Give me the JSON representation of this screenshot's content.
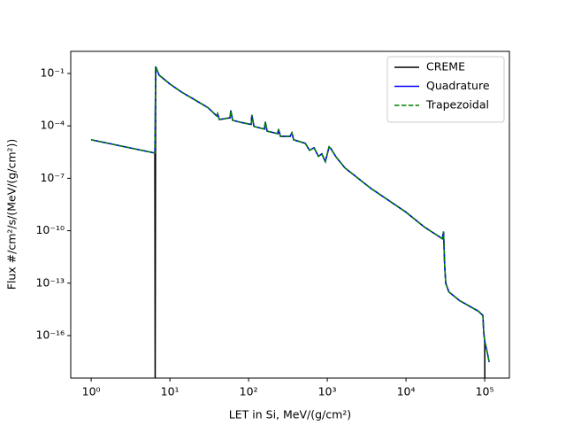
{
  "chart_data": {
    "type": "line",
    "xlabel": "LET in Si, MeV/(g/cm²)",
    "ylabel": "Flux #/cm²/s/(MeV/(g/cm²))",
    "xscale": "log",
    "yscale": "log",
    "xlim": [
      0.55,
      206000
    ],
    "ylim": [
      3.7e-19,
      1.84
    ],
    "xticks": [
      {
        "value": 1,
        "label": "10⁰"
      },
      {
        "value": 10,
        "label": "10¹"
      },
      {
        "value": 100,
        "label": "10²"
      },
      {
        "value": 1000,
        "label": "10³"
      },
      {
        "value": 10000,
        "label": "10⁴"
      },
      {
        "value": 100000,
        "label": "10⁵"
      }
    ],
    "yticks": [
      {
        "value": 1e-16,
        "label": "10⁻¹⁶"
      },
      {
        "value": 1e-13,
        "label": "10⁻¹³"
      },
      {
        "value": 1e-10,
        "label": "10⁻¹⁰"
      },
      {
        "value": 1e-07,
        "label": "10⁻⁷"
      },
      {
        "value": 0.0001,
        "label": "10⁻⁴"
      },
      {
        "value": 0.1,
        "label": "10⁻¹"
      }
    ],
    "legend": "upper right",
    "series": [
      {
        "name": "CREME",
        "color": "#000000",
        "linestyle": "solid",
        "x": [
          1,
          6.44,
          6.5,
          6.6,
          7.3,
          10,
          14,
          20,
          30.5,
          39.4,
          40.4,
          42.5,
          58,
          59.5,
          62.6,
          79,
          108,
          110,
          117,
          159,
          163,
          172,
          235,
          240,
          254,
          337,
          355,
          374,
          525,
          595,
          679,
          772,
          852,
          945,
          1054,
          1110,
          1300,
          1680,
          3600,
          10000,
          17200,
          29000,
          30000,
          31000,
          32000,
          35000,
          48000,
          83000,
          95000,
          97000,
          100000,
          100500
        ],
        "values": [
          1.6e-05,
          2.8e-06,
          1e-19,
          0.25,
          0.08,
          0.025,
          0.0087,
          0.0034,
          0.0011,
          0.00037,
          0.0005,
          0.00023,
          0.00029,
          0.00075,
          0.00021,
          0.00016,
          0.00012,
          0.00042,
          9.3e-05,
          6.5e-05,
          0.00017,
          5e-05,
          3.6e-05,
          6.5e-05,
          2.5e-05,
          2.5e-05,
          4e-05,
          1.6e-05,
          1e-05,
          4e-06,
          5.6e-06,
          1.8e-06,
          2.5e-06,
          9e-07,
          6.3e-06,
          5e-06,
          1.6e-06,
          3.9e-07,
          2.6e-08,
          1.15e-09,
          1.6e-10,
          3.5e-11,
          9e-11,
          1e-12,
          1e-13,
          3.2e-14,
          1e-14,
          2.5e-15,
          1.4e-15,
          1.6e-16,
          5e-17,
          1e-19
        ]
      },
      {
        "name": "Quadrature",
        "color": "#0000ff",
        "linestyle": "solid",
        "x": [
          1,
          6.44,
          6.6,
          7.3,
          10,
          14,
          20,
          30.5,
          39.4,
          40.4,
          42.5,
          58,
          59.5,
          62.6,
          79,
          108,
          110,
          117,
          159,
          163,
          172,
          235,
          240,
          254,
          337,
          355,
          374,
          525,
          595,
          679,
          772,
          852,
          945,
          1054,
          1110,
          1300,
          1680,
          3600,
          10000,
          17200,
          29000,
          30000,
          31000,
          32000,
          35000,
          48000,
          83000,
          95000,
          97000,
          100000,
          109000,
          114000
        ],
        "values": [
          1.6e-05,
          2.8e-06,
          0.25,
          0.08,
          0.025,
          0.0087,
          0.0034,
          0.0011,
          0.00037,
          0.0005,
          0.00023,
          0.00029,
          0.00075,
          0.00021,
          0.00016,
          0.00012,
          0.00042,
          9.3e-05,
          6.5e-05,
          0.00017,
          5e-05,
          3.6e-05,
          6.5e-05,
          2.5e-05,
          2.5e-05,
          4e-05,
          1.6e-05,
          1e-05,
          4e-06,
          5.6e-06,
          1.8e-06,
          2.5e-06,
          9e-07,
          6.3e-06,
          5e-06,
          1.6e-06,
          3.9e-07,
          2.6e-08,
          1.15e-09,
          1.6e-10,
          3.5e-11,
          9e-11,
          1e-12,
          1e-13,
          3.2e-14,
          1e-14,
          2.5e-15,
          1.4e-15,
          1.6e-16,
          5e-17,
          8.7e-18,
          3e-18
        ]
      },
      {
        "name": "Trapezoidal",
        "color": "#008000",
        "linestyle": "dashed",
        "x": [
          1,
          6.44,
          6.6,
          7.3,
          10,
          14,
          20,
          30.5,
          39.4,
          40.4,
          42.5,
          58,
          59.5,
          62.6,
          79,
          108,
          110,
          117,
          159,
          163,
          172,
          235,
          240,
          254,
          337,
          355,
          374,
          525,
          595,
          679,
          772,
          852,
          945,
          1054,
          1110,
          1300,
          1680,
          3600,
          10000,
          17200,
          29000,
          30000,
          31000,
          32000,
          35000,
          48000,
          83000,
          95000,
          97000,
          100000,
          109000,
          114000
        ],
        "values": [
          1.6e-05,
          2.8e-06,
          0.25,
          0.08,
          0.025,
          0.0087,
          0.0034,
          0.0011,
          0.00037,
          0.0005,
          0.00023,
          0.00029,
          0.00075,
          0.00021,
          0.00016,
          0.00012,
          0.00042,
          9.3e-05,
          6.5e-05,
          0.00017,
          5e-05,
          3.6e-05,
          6.5e-05,
          2.5e-05,
          2.5e-05,
          4e-05,
          1.6e-05,
          1e-05,
          4e-06,
          5.6e-06,
          1.8e-06,
          2.5e-06,
          9e-07,
          6.3e-06,
          5e-06,
          1.6e-06,
          3.9e-07,
          2.6e-08,
          1.15e-09,
          1.6e-10,
          3.5e-11,
          9e-11,
          1e-12,
          1e-13,
          3.2e-14,
          1e-14,
          2.5e-15,
          1.4e-15,
          1.6e-16,
          5e-17,
          8.7e-18,
          3e-18
        ]
      }
    ]
  }
}
